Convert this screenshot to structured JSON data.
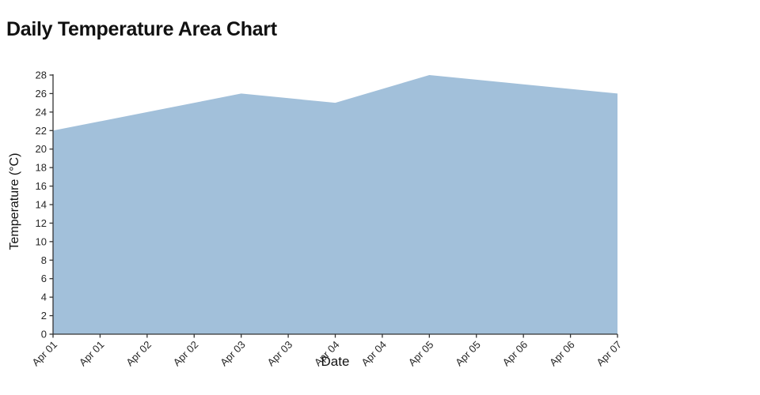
{
  "page": {
    "heading": "Daily Temperature Area Chart"
  },
  "chart_data": {
    "type": "area",
    "title": "Daily Temperature Area Chart",
    "xlabel": "Date",
    "ylabel": "Temperature (°C)",
    "categories": [
      "Apr 01",
      "Apr 02",
      "Apr 03",
      "Apr 04",
      "Apr 05",
      "Apr 06",
      "Apr 07"
    ],
    "values": [
      22,
      24,
      26,
      25,
      28,
      27,
      26
    ],
    "x_tick_labels": [
      "Apr 01",
      "Apr 01",
      "Apr 02",
      "Apr 02",
      "Apr 03",
      "Apr 03",
      "Apr 04",
      "Apr 04",
      "Apr 05",
      "Apr 05",
      "Apr 06",
      "Apr 06",
      "Apr 07"
    ],
    "y_ticks": [
      0,
      2,
      4,
      6,
      8,
      10,
      12,
      14,
      16,
      18,
      20,
      22,
      24,
      26,
      28
    ],
    "ylim": [
      0,
      28
    ],
    "grid": false,
    "legend_position": "none",
    "colors": {
      "fill": "#a2c0da",
      "axis": "#333333",
      "tick_label": "#262626",
      "label": "#111111"
    }
  }
}
